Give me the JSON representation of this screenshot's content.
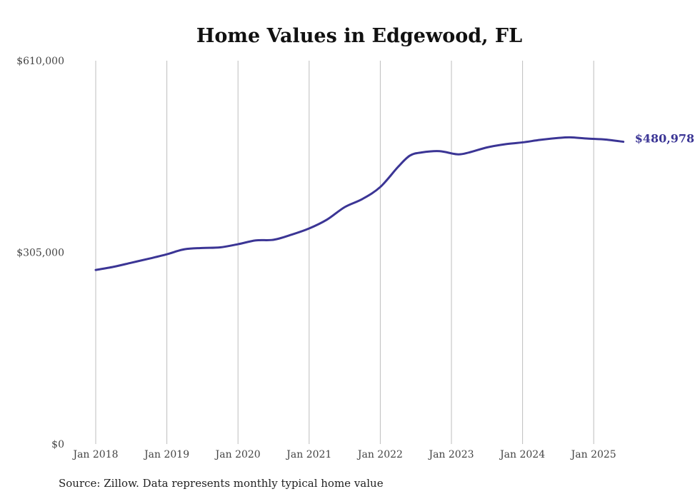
{
  "chart_data": {
    "type": "line",
    "title": "Home Values in Edgewood, FL",
    "xlabel": "",
    "ylabel": "",
    "ylim": [
      0,
      610000
    ],
    "yticks": [
      0,
      305000,
      610000
    ],
    "ytick_labels": [
      "$0",
      "$305,000",
      "$610,000"
    ],
    "xtick_labels": [
      "Jan 2018",
      "Jan 2019",
      "Jan 2020",
      "Jan 2021",
      "Jan 2022",
      "Jan 2023",
      "Jan 2024",
      "Jan 2025"
    ],
    "grid": "vertical",
    "line_color": "#3b3595",
    "series": [
      {
        "name": "Typical home value",
        "x": [
          "2018-01",
          "2018-04",
          "2018-07",
          "2018-10",
          "2019-01",
          "2019-04",
          "2019-07",
          "2019-10",
          "2020-01",
          "2020-04",
          "2020-07",
          "2020-10",
          "2021-01",
          "2021-04",
          "2021-07",
          "2021-10",
          "2022-01",
          "2022-04",
          "2022-06",
          "2022-08",
          "2022-11",
          "2023-02",
          "2023-04",
          "2023-07",
          "2023-10",
          "2024-01",
          "2024-04",
          "2024-07",
          "2024-09",
          "2024-12",
          "2025-03",
          "2025-06"
        ],
        "values": [
          277000,
          282000,
          288500,
          295000,
          302000,
          310000,
          312000,
          313000,
          318000,
          324000,
          325000,
          333000,
          343000,
          357000,
          377000,
          390000,
          409000,
          441000,
          459000,
          464000,
          466000,
          461000,
          464000,
          472000,
          477000,
          480000,
          484000,
          487000,
          488000,
          486000,
          484500,
          480978
        ]
      }
    ],
    "end_label": "$480,978"
  },
  "source": "Source: Zillow. Data represents monthly typical home value"
}
